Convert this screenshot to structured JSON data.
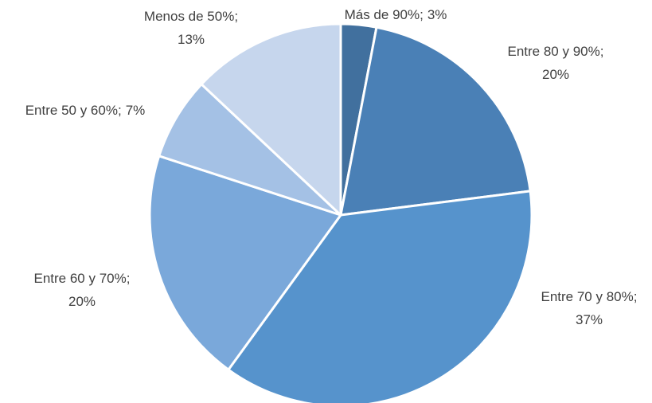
{
  "chart_data": {
    "type": "pie",
    "categories": [
      "Más de 90%",
      "Entre 80 y 90%",
      "Entre 70 y 80%",
      "Entre 60 y 70%",
      "Entre 50 y 60%",
      "Menos de 50%"
    ],
    "values": [
      3,
      20,
      37,
      20,
      7,
      13
    ],
    "value_labels": [
      "3%",
      "20%",
      "37%",
      "20%",
      "7%",
      "13%"
    ],
    "separator": ";",
    "colors": [
      "#41709e",
      "#4a80b6",
      "#5693cc",
      "#7aa8da",
      "#a4c1e5",
      "#c6d6ed"
    ]
  }
}
